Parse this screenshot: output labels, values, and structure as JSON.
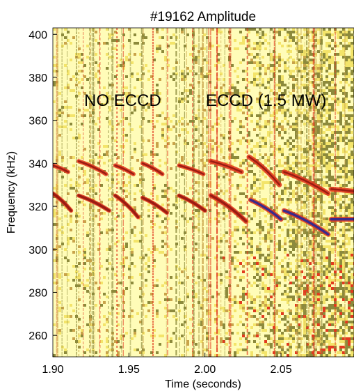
{
  "chart_data": {
    "type": "heatmap",
    "title": "#19162 Amplitude",
    "xlabel": "Time (seconds)",
    "ylabel": "Frequency (kHz)",
    "xlim": [
      1.9,
      2.098
    ],
    "ylim": [
      250,
      403
    ],
    "x_ticks": [
      1.9,
      1.95,
      2.0,
      2.05
    ],
    "x_tick_labels": [
      "1.90",
      "1.95",
      "2.00",
      "2.05"
    ],
    "y_ticks": [
      260,
      280,
      300,
      320,
      340,
      360,
      380,
      400
    ],
    "y_tick_labels": [
      "260",
      "280",
      "300",
      "320",
      "340",
      "360",
      "380",
      "400"
    ],
    "annotations": [
      {
        "text": "NO ECCD",
        "x": 1.92,
        "y": 364
      },
      {
        "text": "ECCD (1.5 MW)",
        "x": 2.002,
        "y": 364
      }
    ],
    "colors": {
      "background": "#fffcb8",
      "low": "#f3e46a",
      "mid": "#c9a34a",
      "speckle": "#8c8a3c",
      "high": "#e23a1f",
      "peak": "#3a2a8a"
    },
    "series": [
      {
        "mode": "upper",
        "segments": [
          {
            "t0": 1.9,
            "t1": 1.91,
            "f0": 339,
            "f1": 336
          },
          {
            "t0": 1.917,
            "t1": 1.935,
            "f0": 341,
            "f1": 335
          },
          {
            "t0": 1.941,
            "t1": 1.953,
            "f0": 339,
            "f1": 335
          },
          {
            "t0": 1.959,
            "t1": 1.972,
            "f0": 340,
            "f1": 335
          },
          {
            "t0": 1.983,
            "t1": 1.999,
            "f0": 339,
            "f1": 335
          },
          {
            "t0": 2.004,
            "t1": 2.024,
            "f0": 341,
            "f1": 336
          },
          {
            "t0": 2.029,
            "t1": 2.049,
            "f0": 343,
            "f1": 330
          },
          {
            "t0": 2.052,
            "t1": 2.081,
            "f0": 336,
            "f1": 326
          },
          {
            "t0": 2.083,
            "t1": 2.098,
            "f0": 328,
            "f1": 327
          }
        ]
      },
      {
        "mode": "lower",
        "segments": [
          {
            "t0": 1.9,
            "t1": 1.912,
            "f0": 326,
            "f1": 318
          },
          {
            "t0": 1.917,
            "t1": 1.937,
            "f0": 325,
            "f1": 318
          },
          {
            "t0": 1.941,
            "t1": 1.956,
            "f0": 325,
            "f1": 315
          },
          {
            "t0": 1.959,
            "t1": 1.975,
            "f0": 324,
            "f1": 317
          },
          {
            "t0": 1.983,
            "t1": 2.0,
            "f0": 325,
            "f1": 318
          },
          {
            "t0": 2.004,
            "t1": 2.027,
            "f0": 325,
            "f1": 313
          },
          {
            "t0": 2.03,
            "t1": 2.05,
            "f0": 323,
            "f1": 314
          },
          {
            "t0": 2.052,
            "t1": 2.081,
            "f0": 318,
            "f1": 307
          },
          {
            "t0": 2.083,
            "t1": 2.098,
            "f0": 314,
            "f1": 314
          }
        ]
      }
    ]
  }
}
